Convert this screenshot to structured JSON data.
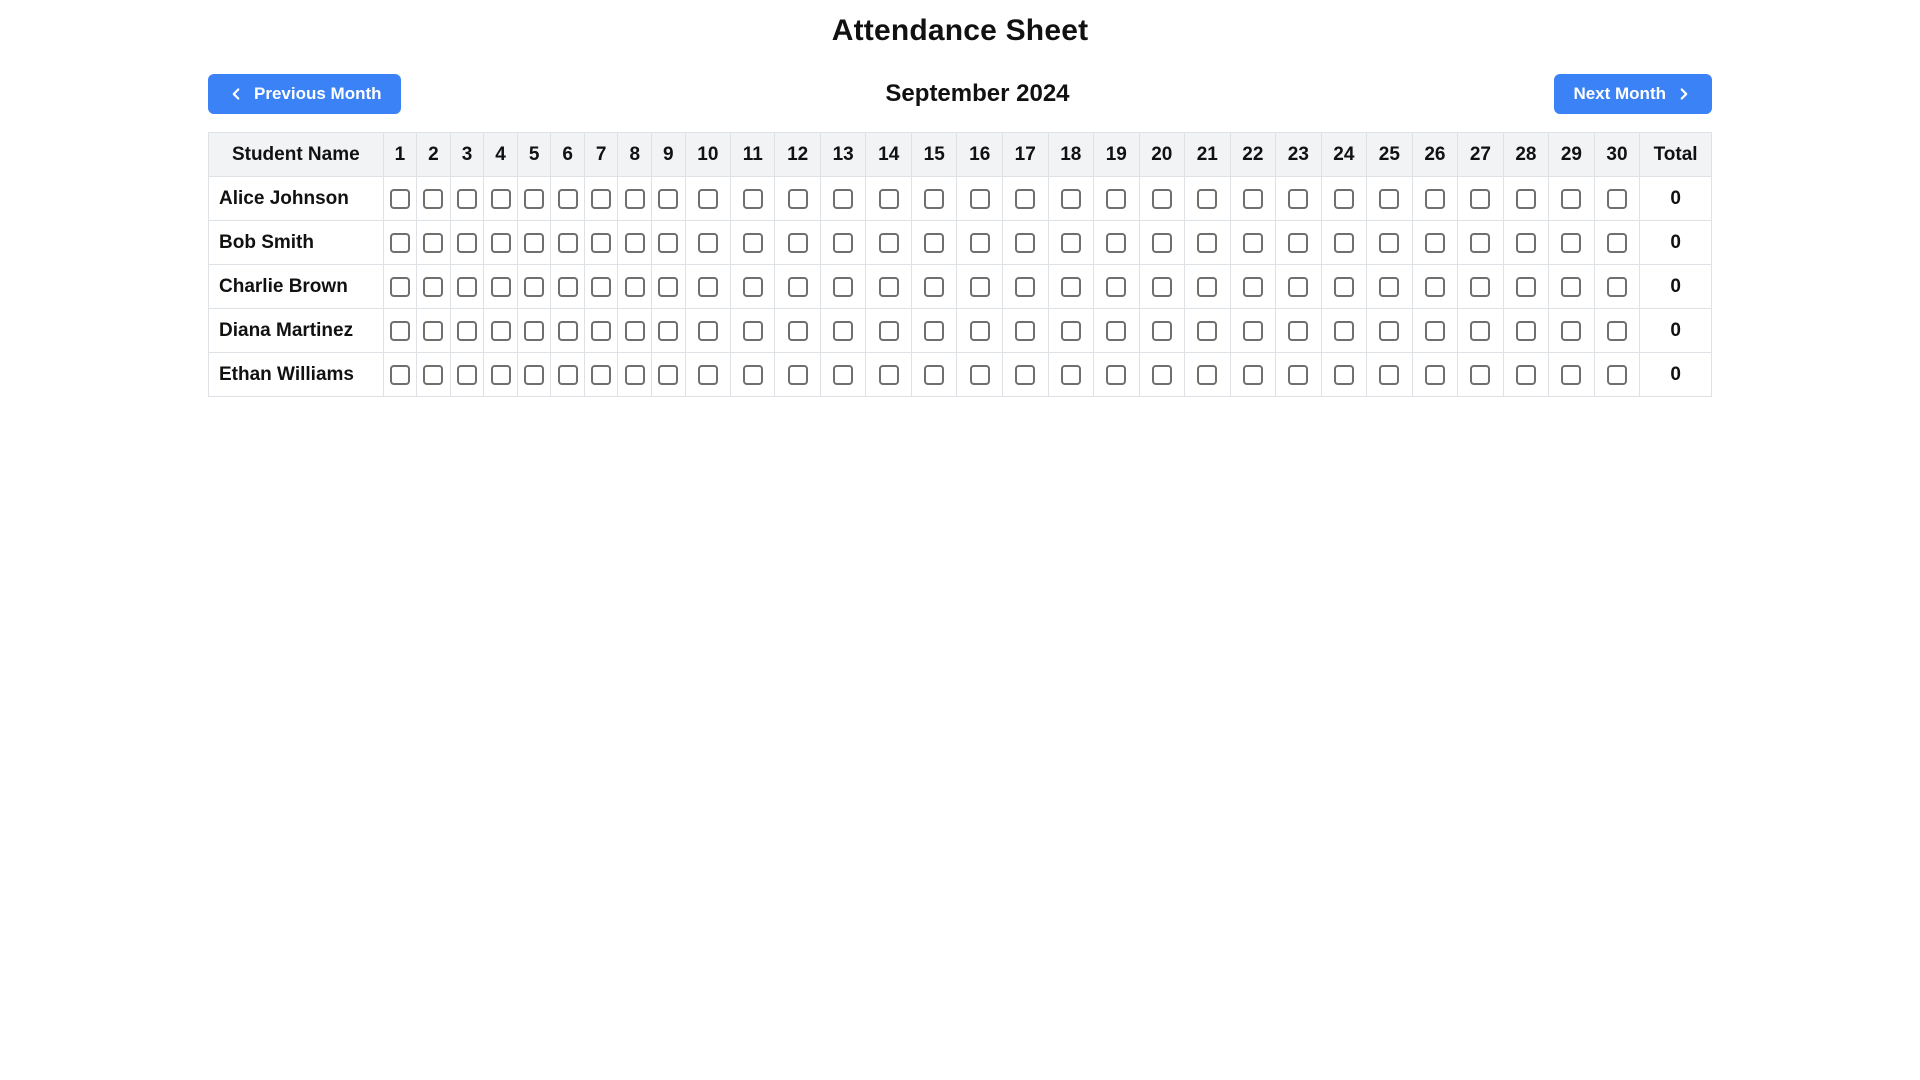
{
  "page": {
    "title": "Attendance Sheet"
  },
  "nav": {
    "prev_label": "Previous Month",
    "next_label": "Next Month",
    "month_label": "September 2024"
  },
  "table": {
    "name_header": "Student Name",
    "total_header": "Total",
    "days": [
      "1",
      "2",
      "3",
      "4",
      "5",
      "6",
      "7",
      "8",
      "9",
      "10",
      "11",
      "12",
      "13",
      "14",
      "15",
      "16",
      "17",
      "18",
      "19",
      "20",
      "21",
      "22",
      "23",
      "24",
      "25",
      "26",
      "27",
      "28",
      "29",
      "30"
    ],
    "rows": [
      {
        "name": "Alice Johnson",
        "total": "0",
        "checked": [
          false,
          false,
          false,
          false,
          false,
          false,
          false,
          false,
          false,
          false,
          false,
          false,
          false,
          false,
          false,
          false,
          false,
          false,
          false,
          false,
          false,
          false,
          false,
          false,
          false,
          false,
          false,
          false,
          false,
          false
        ]
      },
      {
        "name": "Bob Smith",
        "total": "0",
        "checked": [
          false,
          false,
          false,
          false,
          false,
          false,
          false,
          false,
          false,
          false,
          false,
          false,
          false,
          false,
          false,
          false,
          false,
          false,
          false,
          false,
          false,
          false,
          false,
          false,
          false,
          false,
          false,
          false,
          false,
          false
        ]
      },
      {
        "name": "Charlie Brown",
        "total": "0",
        "checked": [
          false,
          false,
          false,
          false,
          false,
          false,
          false,
          false,
          false,
          false,
          false,
          false,
          false,
          false,
          false,
          false,
          false,
          false,
          false,
          false,
          false,
          false,
          false,
          false,
          false,
          false,
          false,
          false,
          false,
          false
        ]
      },
      {
        "name": "Diana Martinez",
        "total": "0",
        "checked": [
          false,
          false,
          false,
          false,
          false,
          false,
          false,
          false,
          false,
          false,
          false,
          false,
          false,
          false,
          false,
          false,
          false,
          false,
          false,
          false,
          false,
          false,
          false,
          false,
          false,
          false,
          false,
          false,
          false,
          false
        ]
      },
      {
        "name": "Ethan Williams",
        "total": "0",
        "checked": [
          false,
          false,
          false,
          false,
          false,
          false,
          false,
          false,
          false,
          false,
          false,
          false,
          false,
          false,
          false,
          false,
          false,
          false,
          false,
          false,
          false,
          false,
          false,
          false,
          false,
          false,
          false,
          false,
          false,
          false
        ]
      }
    ]
  },
  "colors": {
    "accent": "#3b82f6",
    "header_bg": "#f1f3f5",
    "table_border": "#dee2e6",
    "checkbox_border": "#6f6f6f",
    "text": "#111111"
  }
}
